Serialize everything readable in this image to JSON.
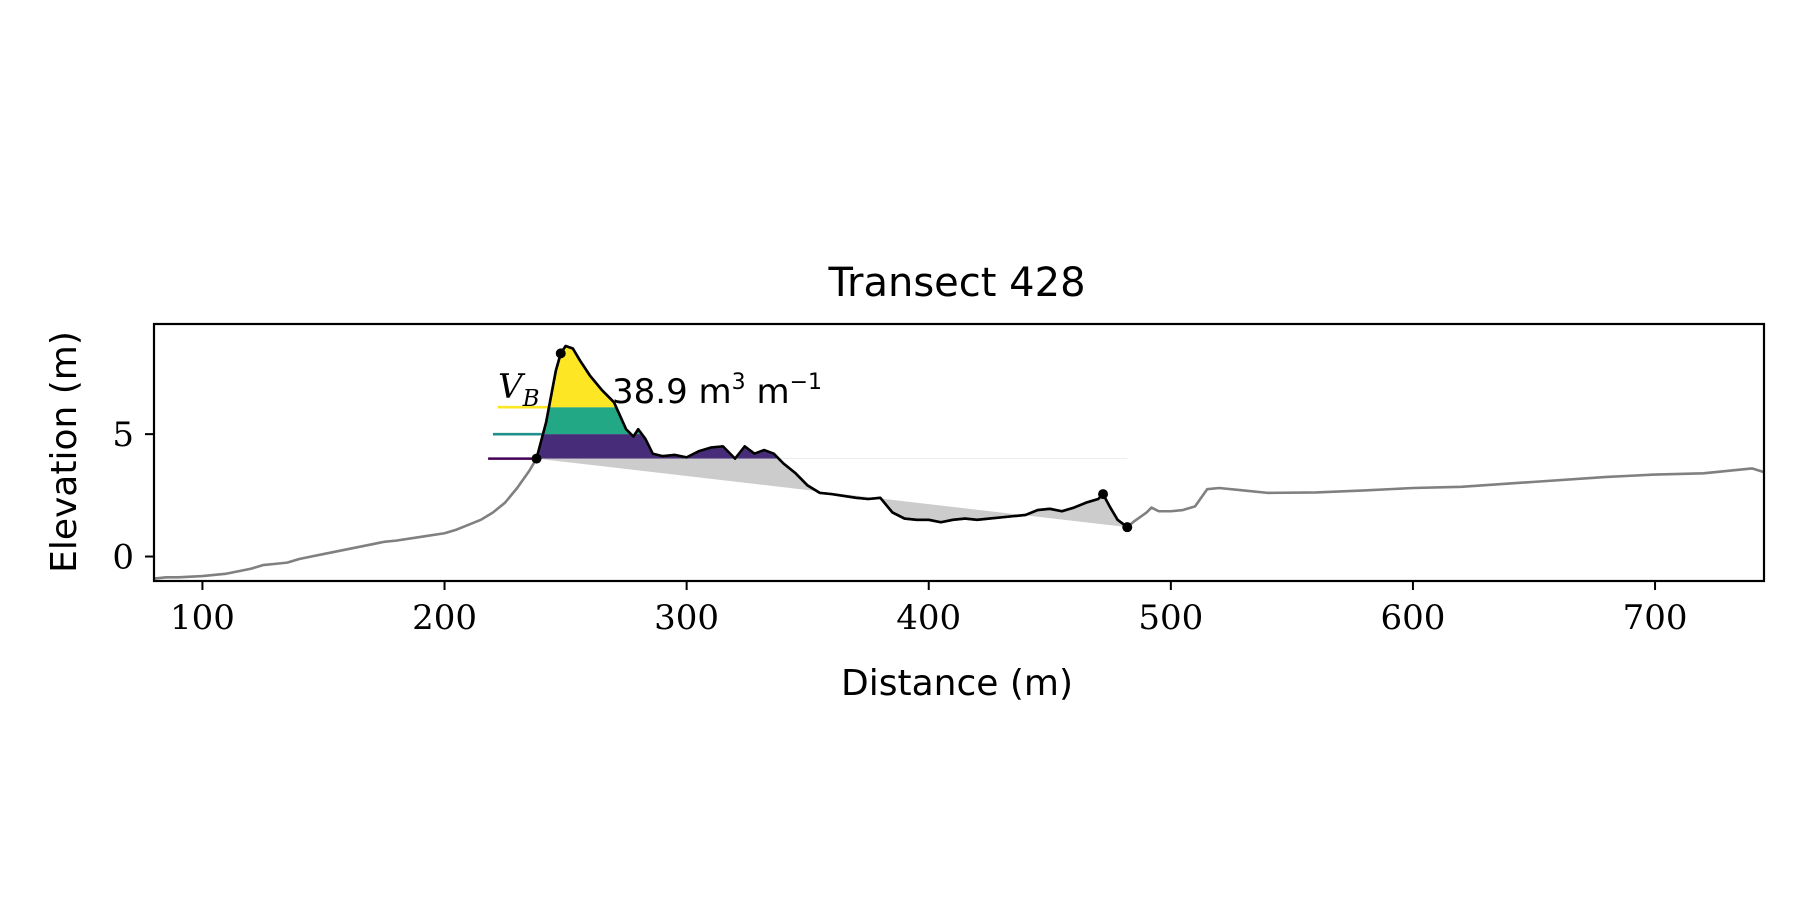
{
  "chart_data": {
    "type": "area",
    "title": "Transect 428",
    "xlabel": "Distance (m)",
    "ylabel": "Elevation (m)",
    "xlim": [
      80,
      745
    ],
    "ylim": [
      -1.0,
      9.5
    ],
    "xticks": [
      100,
      200,
      300,
      400,
      500,
      600,
      700
    ],
    "yticks": [
      0,
      5
    ],
    "grid": false,
    "legend": null,
    "annotation": {
      "symbol": "V",
      "subscript": "B",
      "value_text": "38.9 m",
      "unit_exp1": "3",
      "unit2": " m",
      "unit_exp2": "−1"
    },
    "colors": {
      "profile": "#808080",
      "highlight": "#000000",
      "fill_gray": "#cccccc",
      "band_low": "#472c7a",
      "band_mid": "#22a884",
      "band_high": "#fde725",
      "line_low": "#440154",
      "line_mid": "#21908d",
      "line_high": "#fde725"
    },
    "profile": {
      "x": [
        80,
        85,
        90,
        100,
        110,
        120,
        125,
        130,
        135,
        140,
        145,
        150,
        160,
        170,
        175,
        180,
        190,
        200,
        205,
        210,
        215,
        220,
        225,
        230,
        235,
        238,
        242,
        246,
        248,
        250,
        253,
        256,
        260,
        265,
        270,
        275,
        278,
        280,
        283,
        286,
        290,
        295,
        300,
        305,
        310,
        315,
        320,
        324,
        328,
        332,
        336,
        340,
        345,
        350,
        355,
        360,
        370,
        375,
        380,
        385,
        390,
        395,
        400,
        405,
        410,
        415,
        420,
        425,
        430,
        435,
        440,
        445,
        450,
        455,
        460,
        465,
        470,
        472,
        475,
        478,
        482,
        485,
        490,
        492,
        495,
        500,
        505,
        510,
        515,
        520,
        530,
        540,
        560,
        580,
        600,
        620,
        650,
        680,
        690,
        700,
        720,
        740,
        745
      ],
      "y": [
        -0.9,
        -0.85,
        -0.85,
        -0.8,
        -0.7,
        -0.5,
        -0.35,
        -0.3,
        -0.25,
        -0.1,
        0.0,
        0.1,
        0.3,
        0.5,
        0.6,
        0.65,
        0.8,
        0.95,
        1.1,
        1.3,
        1.5,
        1.8,
        2.2,
        2.8,
        3.5,
        4.0,
        5.5,
        7.6,
        8.3,
        8.6,
        8.5,
        8.0,
        7.4,
        6.8,
        6.3,
        5.2,
        4.9,
        5.2,
        4.8,
        4.2,
        4.1,
        4.15,
        4.05,
        4.3,
        4.45,
        4.5,
        4.0,
        4.5,
        4.2,
        4.35,
        4.2,
        3.8,
        3.4,
        2.9,
        2.6,
        2.55,
        2.4,
        2.35,
        2.4,
        1.8,
        1.55,
        1.5,
        1.5,
        1.4,
        1.5,
        1.55,
        1.5,
        1.55,
        1.6,
        1.65,
        1.7,
        1.9,
        1.95,
        1.85,
        2.0,
        2.2,
        2.35,
        2.55,
        2.0,
        1.5,
        1.2,
        1.45,
        1.8,
        2.0,
        1.85,
        1.85,
        1.9,
        2.05,
        2.75,
        2.8,
        2.7,
        2.6,
        2.62,
        2.7,
        2.8,
        2.85,
        3.05,
        3.25,
        3.3,
        3.35,
        3.4,
        3.6,
        3.45
      ]
    },
    "dune": {
      "toe": [
        238,
        4.0
      ],
      "crest": [
        248,
        8.3
      ],
      "heel": [
        472,
        2.55
      ],
      "back": [
        482,
        1.2
      ],
      "band_levels": [
        4.0,
        5.0,
        6.1
      ],
      "band_line_start_x": [
        218,
        220,
        222
      ]
    }
  }
}
